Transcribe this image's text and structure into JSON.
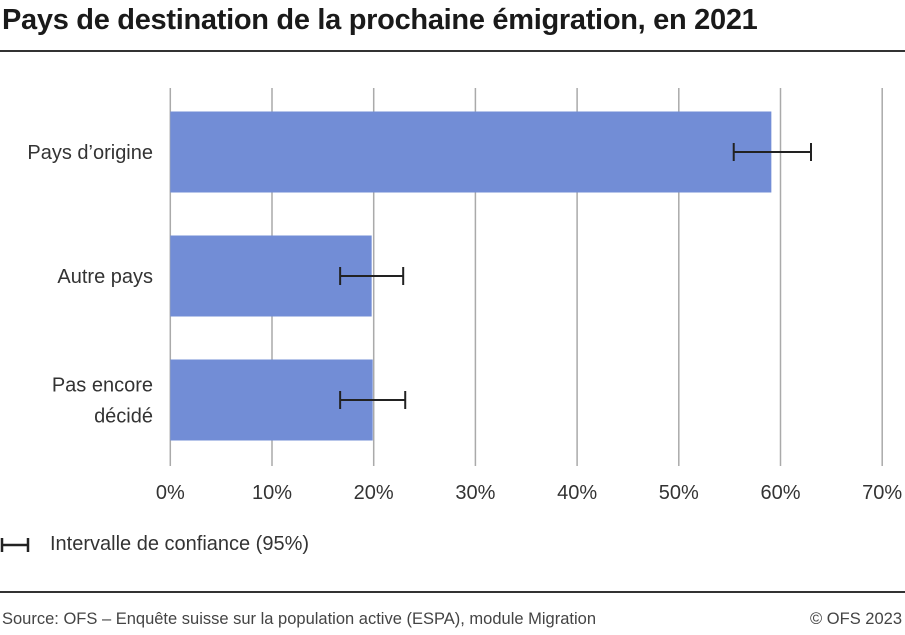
{
  "title": "Pays de destination de la prochaine émigration, en 2021",
  "chart_data": {
    "type": "bar",
    "orientation": "horizontal",
    "categories": [
      "Pays d’origine",
      "Autre pays",
      "Pas encore décidé"
    ],
    "category_lines": [
      [
        "Pays d’origine"
      ],
      [
        "Autre pays"
      ],
      [
        "Pas encore",
        "décidé"
      ]
    ],
    "values": [
      59.1,
      19.8,
      19.9
    ],
    "ci_low": [
      55.4,
      16.7,
      16.7
    ],
    "ci_high": [
      63.0,
      22.9,
      23.1
    ],
    "xlim": [
      0,
      70
    ],
    "xticks": [
      "0%",
      "10%",
      "20%",
      "30%",
      "40%",
      "50%",
      "60%",
      "70%"
    ],
    "grid": true,
    "bar_color": "#728dd6",
    "legend": {
      "label": "Intervalle de confiance (95%)",
      "position": "bottom-left"
    }
  },
  "footer": {
    "source": "Source: OFS – Enquête suisse sur la population active (ESPA), module Migration",
    "copyright": "© OFS 2023"
  }
}
